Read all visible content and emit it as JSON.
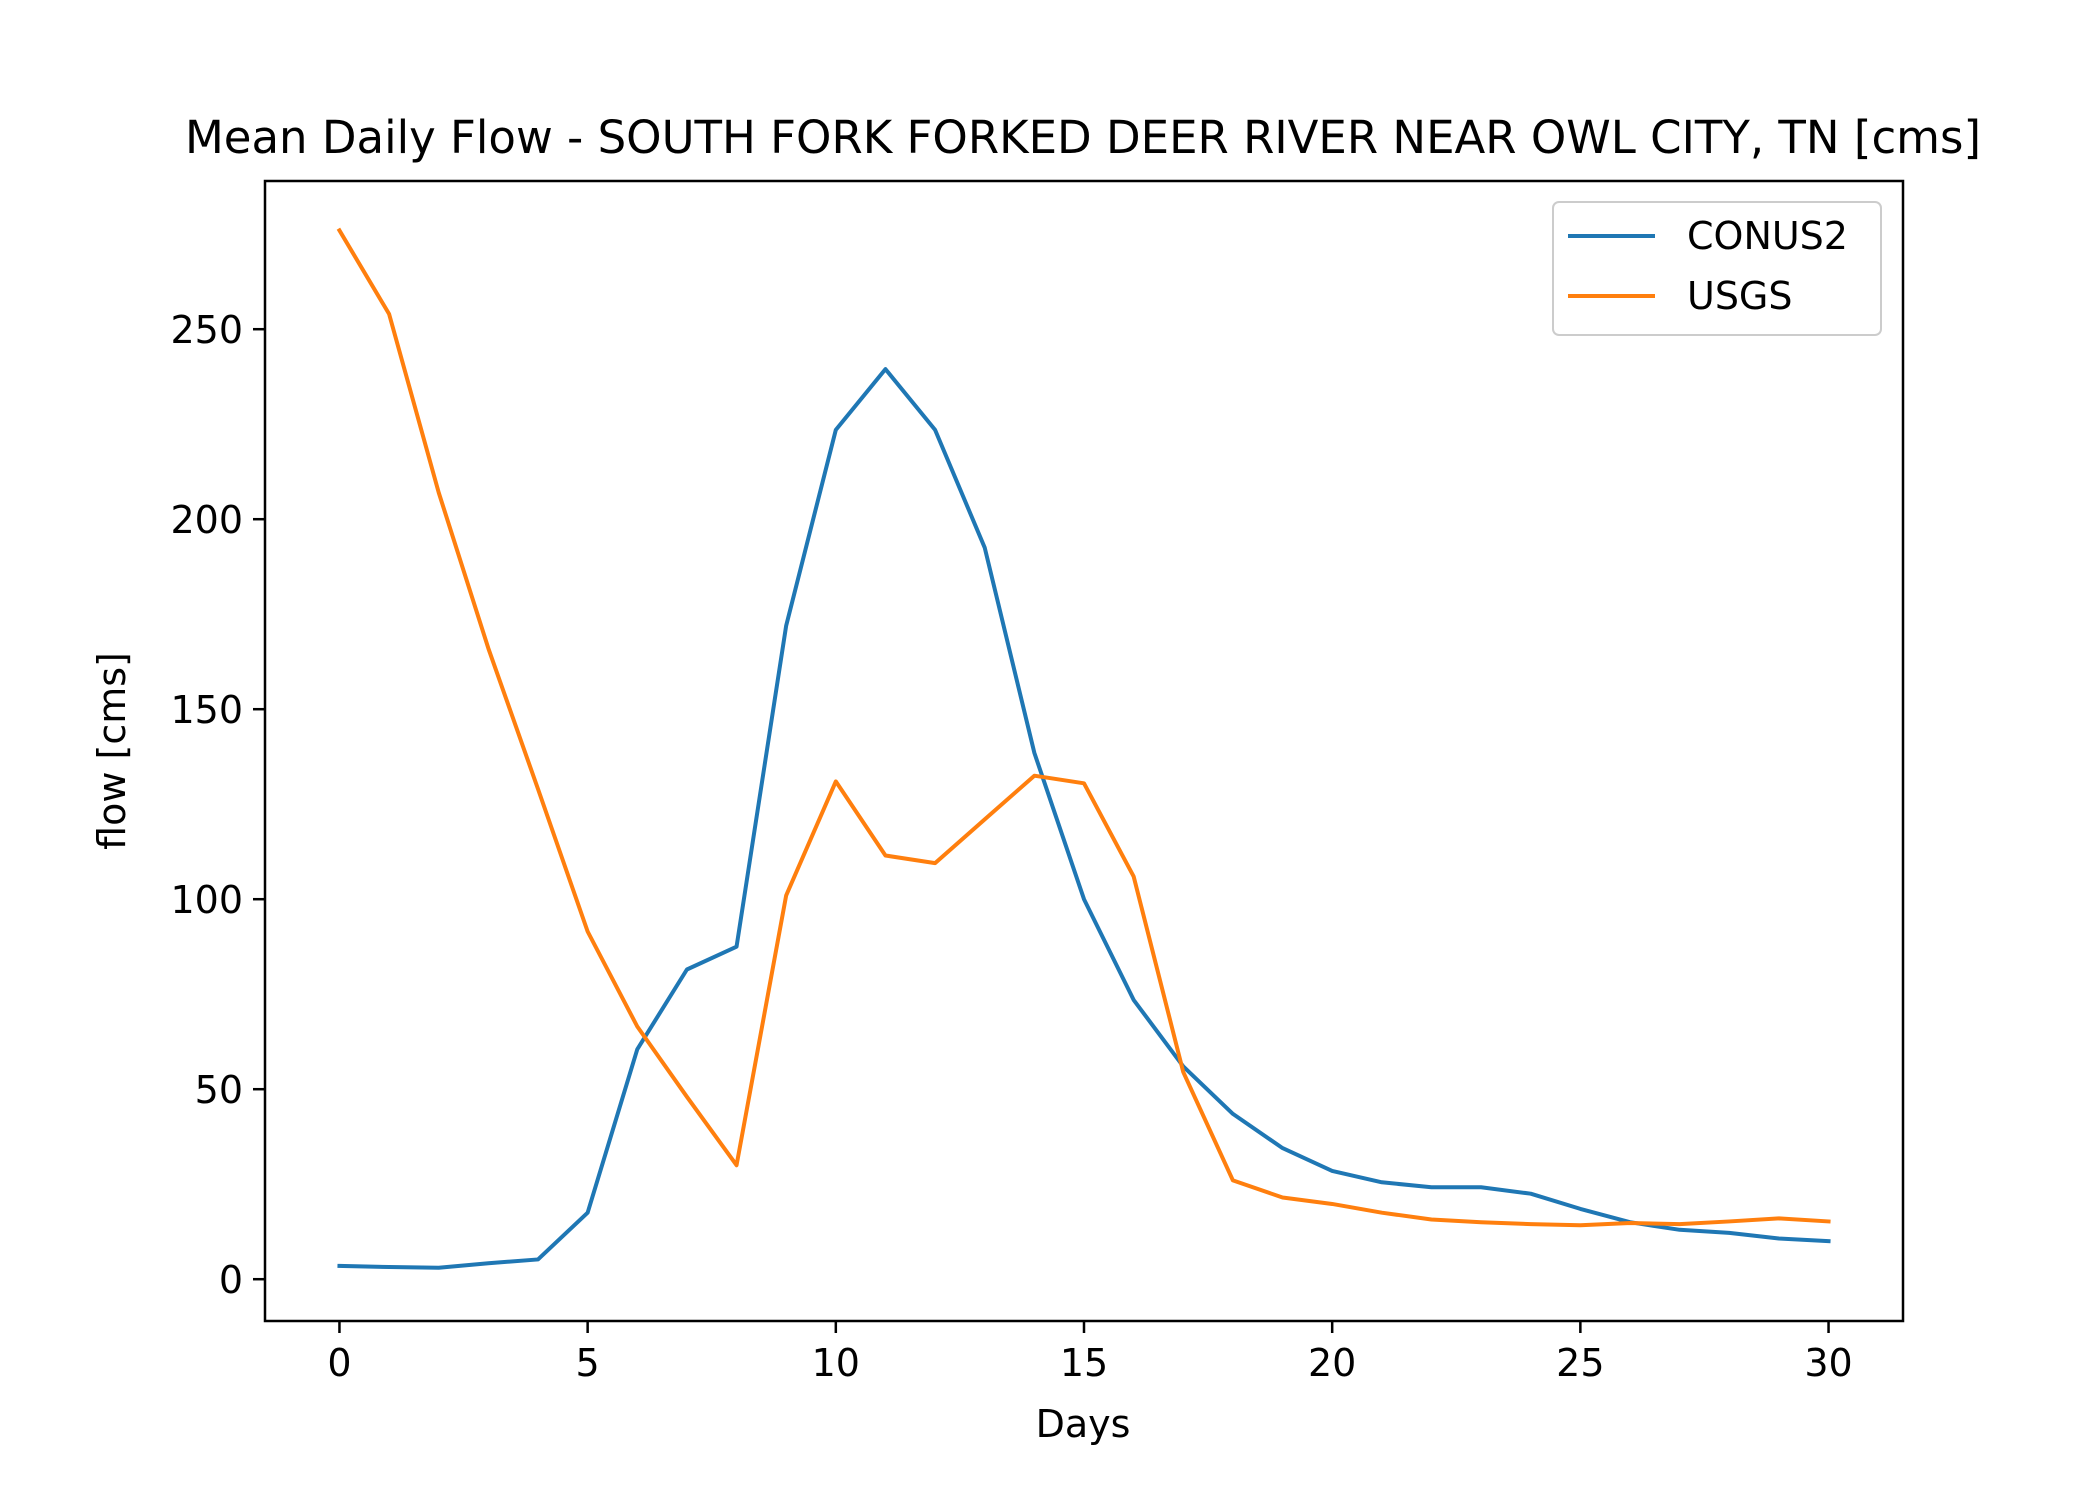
{
  "chart_data": {
    "type": "line",
    "title": "Mean Daily Flow - SOUTH FORK FORKED DEER RIVER NEAR OWL CITY, TN [cms]",
    "xlabel": "Days",
    "ylabel": "flow [cms]",
    "xlim": [
      -1.5,
      31.5
    ],
    "ylim": [
      -11,
      289
    ],
    "xticks": [
      0,
      5,
      10,
      15,
      20,
      25,
      30
    ],
    "yticks": [
      0,
      50,
      100,
      150,
      200,
      250
    ],
    "grid": false,
    "legend_position": "top-right",
    "x": [
      0,
      1,
      2,
      3,
      4,
      5,
      6,
      7,
      8,
      9,
      10,
      11,
      12,
      13,
      14,
      15,
      16,
      17,
      18,
      19,
      20,
      21,
      22,
      23,
      24,
      25,
      26,
      27,
      28,
      29,
      30
    ],
    "series": [
      {
        "name": "CONUS2",
        "color": "#1f77b4",
        "values": [
          3.5,
          3.2,
          3.0,
          4.2,
          5.2,
          17.5,
          60.5,
          81.5,
          87.5,
          172.0,
          223.5,
          239.5,
          223.5,
          192.5,
          138.5,
          100.0,
          73.5,
          56.0,
          43.5,
          34.5,
          28.5,
          25.5,
          24.2,
          24.2,
          22.5,
          18.5,
          15.0,
          13.0,
          12.2,
          10.7,
          10.0
        ]
      },
      {
        "name": "USGS",
        "color": "#ff7f0e",
        "values": [
          276.0,
          254.0,
          207.0,
          166.0,
          129.0,
          91.5,
          66.5,
          48.0,
          30.0,
          101.0,
          131.0,
          111.5,
          109.5,
          121.0,
          132.5,
          130.5,
          106.0,
          54.5,
          26.0,
          21.5,
          19.8,
          17.5,
          15.7,
          15.0,
          14.5,
          14.2,
          14.8,
          14.5,
          15.2,
          16.0,
          15.2
        ]
      }
    ]
  }
}
